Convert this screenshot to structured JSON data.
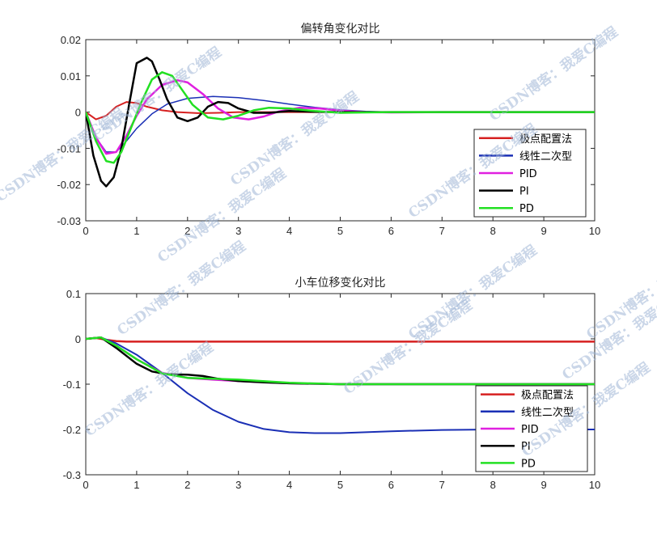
{
  "watermark": "CSDN博客：我爱C编程",
  "chart_data": [
    {
      "type": "line",
      "title": "偏转角变化对比",
      "xlim": [
        0,
        10
      ],
      "ylim": [
        -0.03,
        0.02
      ],
      "xticks": [
        0,
        1,
        2,
        3,
        4,
        5,
        6,
        7,
        8,
        9,
        10
      ],
      "yticks": [
        -0.03,
        -0.02,
        -0.01,
        0,
        0.01,
        0.02
      ],
      "ytick_labels": [
        "-0.03",
        "-0.02",
        "-0.01",
        "0",
        "0.01",
        "0.02"
      ],
      "legend_position": "lower-right",
      "series": [
        {
          "name": "极点配置法",
          "color": "#d62020",
          "width": 2,
          "x": [
            0,
            0.2,
            0.4,
            0.6,
            0.8,
            1.0,
            1.2,
            1.5,
            1.8,
            2.2,
            2.6,
            3.0,
            10
          ],
          "y": [
            0,
            -0.002,
            -0.001,
            0.0015,
            0.0028,
            0.0025,
            0.0015,
            0.0005,
            0.0,
            -0.0003,
            -0.0002,
            0,
            0
          ]
        },
        {
          "name": "线性二次型",
          "color": "#1a2fb5",
          "width": 1.5,
          "x": [
            0,
            0.2,
            0.4,
            0.6,
            0.8,
            1.0,
            1.3,
            1.6,
            2.0,
            2.5,
            3.0,
            3.5,
            4.0,
            4.5,
            5.0,
            5.5,
            6.0,
            7,
            8,
            10
          ],
          "y": [
            0,
            -0.007,
            -0.011,
            -0.011,
            -0.008,
            -0.0045,
            -0.0005,
            0.0022,
            0.0038,
            0.0043,
            0.004,
            0.0032,
            0.0022,
            0.0013,
            0.0006,
            0.0002,
            0.0,
            0,
            0,
            0
          ]
        },
        {
          "name": "PID",
          "color": "#e020e0",
          "width": 2.5,
          "x": [
            0,
            0.2,
            0.4,
            0.6,
            0.8,
            1.0,
            1.2,
            1.5,
            1.8,
            2.0,
            2.3,
            2.6,
            2.9,
            3.2,
            3.5,
            3.8,
            4.2,
            4.6,
            5.0,
            5.5,
            6.0,
            7,
            10
          ],
          "y": [
            0,
            -0.007,
            -0.0115,
            -0.011,
            -0.0065,
            -0.001,
            0.0035,
            0.0075,
            0.0088,
            0.0082,
            0.005,
            0.001,
            -0.0015,
            -0.002,
            -0.0012,
            0.0002,
            0.0012,
            0.001,
            0.0004,
            0.0,
            -0.0001,
            0,
            0
          ]
        },
        {
          "name": "PI",
          "color": "#000000",
          "width": 2.5,
          "x": [
            0,
            0.15,
            0.3,
            0.4,
            0.55,
            0.7,
            0.85,
            1.0,
            1.2,
            1.3,
            1.45,
            1.6,
            1.8,
            2.0,
            2.2,
            2.4,
            2.6,
            2.8,
            3.0,
            3.3,
            3.6,
            4.0,
            4.5,
            5.0,
            6.0,
            10
          ],
          "y": [
            0,
            -0.012,
            -0.019,
            -0.0205,
            -0.018,
            -0.01,
            0.002,
            0.0135,
            0.015,
            0.014,
            0.009,
            0.0035,
            -0.0015,
            -0.0025,
            -0.0015,
            0.0015,
            0.0028,
            0.0025,
            0.001,
            -0.0002,
            -0.0002,
            0.0003,
            0.0001,
            0,
            0,
            0
          ]
        },
        {
          "name": "PD",
          "color": "#22e022",
          "width": 2.5,
          "x": [
            0,
            0.2,
            0.4,
            0.55,
            0.7,
            0.9,
            1.1,
            1.3,
            1.5,
            1.7,
            1.9,
            2.1,
            2.4,
            2.7,
            3.0,
            3.3,
            3.6,
            4.0,
            4.5,
            5.0,
            5.5,
            6.0,
            7,
            10
          ],
          "y": [
            0,
            -0.008,
            -0.0135,
            -0.014,
            -0.011,
            -0.004,
            0.003,
            0.009,
            0.011,
            0.01,
            0.006,
            0.002,
            -0.0015,
            -0.002,
            -0.001,
            0.0005,
            0.0012,
            0.001,
            0.0003,
            -0.0002,
            -0.0001,
            0,
            0,
            0
          ]
        }
      ]
    },
    {
      "type": "line",
      "title": "小车位移变化对比",
      "xlim": [
        0,
        10
      ],
      "ylim": [
        -0.3,
        0.1
      ],
      "xticks": [
        0,
        1,
        2,
        3,
        4,
        5,
        6,
        7,
        8,
        9,
        10
      ],
      "yticks": [
        -0.3,
        -0.2,
        -0.1,
        0,
        0.1
      ],
      "ytick_labels": [
        "-0.3",
        "-0.2",
        "-0.1",
        "0",
        "0.1"
      ],
      "legend_position": "lower-right",
      "series": [
        {
          "name": "极点配置法",
          "color": "#d62020",
          "width": 2.5,
          "x": [
            0,
            0.2,
            0.4,
            0.6,
            0.8,
            1.0,
            2.0,
            10
          ],
          "y": [
            0,
            0.002,
            -0.002,
            -0.005,
            -0.006,
            -0.006,
            -0.006,
            -0.006
          ]
        },
        {
          "name": "线性二次型",
          "color": "#1a2fb5",
          "width": 2,
          "x": [
            0,
            0.3,
            0.6,
            1.0,
            1.5,
            2.0,
            2.5,
            3.0,
            3.5,
            4.0,
            4.5,
            5.0,
            5.5,
            6.0,
            7.0,
            8.0,
            9.0,
            10
          ],
          "y": [
            0,
            0.003,
            -0.01,
            -0.035,
            -0.075,
            -0.12,
            -0.157,
            -0.183,
            -0.199,
            -0.206,
            -0.208,
            -0.208,
            -0.206,
            -0.204,
            -0.201,
            -0.2,
            -0.2,
            -0.2
          ]
        },
        {
          "name": "PID",
          "color": "#e020e0",
          "width": 2.5,
          "x": [
            0,
            0.3,
            0.6,
            1.0,
            1.5,
            2.0,
            2.5,
            3.0,
            4.0,
            5.0,
            6.0,
            7.0,
            10
          ],
          "y": [
            0,
            0.003,
            -0.015,
            -0.045,
            -0.075,
            -0.086,
            -0.09,
            -0.093,
            -0.098,
            -0.1,
            -0.1,
            -0.1,
            -0.1
          ]
        },
        {
          "name": "PI",
          "color": "#000000",
          "width": 2.5,
          "x": [
            0,
            0.3,
            0.6,
            1.0,
            1.3,
            1.6,
            2.0,
            2.3,
            2.6,
            3.0,
            3.5,
            4.0,
            5.0,
            6.0,
            7.0,
            10
          ],
          "y": [
            0,
            0.003,
            -0.02,
            -0.055,
            -0.072,
            -0.078,
            -0.079,
            -0.082,
            -0.088,
            -0.093,
            -0.096,
            -0.098,
            -0.1,
            -0.1,
            -0.1,
            -0.1
          ]
        },
        {
          "name": "PD",
          "color": "#22e022",
          "width": 2.5,
          "x": [
            0,
            0.3,
            0.6,
            1.0,
            1.5,
            2.0,
            2.5,
            3.0,
            4.0,
            5.0,
            6.0,
            7.0,
            10
          ],
          "y": [
            0,
            0.003,
            -0.015,
            -0.045,
            -0.076,
            -0.086,
            -0.088,
            -0.09,
            -0.097,
            -0.1,
            -0.1,
            -0.1,
            -0.1
          ]
        }
      ]
    }
  ]
}
